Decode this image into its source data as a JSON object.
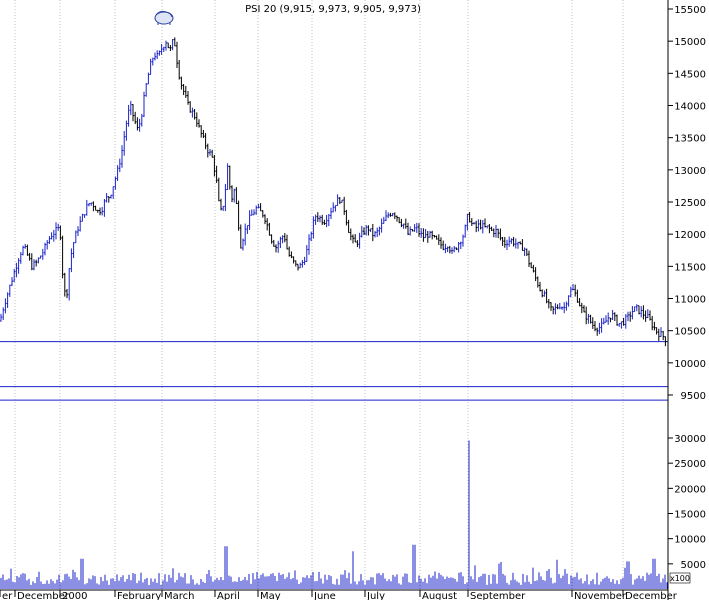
{
  "chart_data": [
    {
      "type": "candlestick",
      "title": "PSI 20 (9,915, 9,973, 9,905, 9,973)",
      "ylim": [
        9350,
        15550
      ],
      "y_ticks": [
        "15500",
        "15000",
        "14500",
        "14000",
        "13500",
        "13000",
        "12500",
        "12000",
        "11500",
        "11000",
        "10500",
        "10000",
        "9500"
      ],
      "x_month_labels": [
        "er",
        "December",
        "2000",
        "February",
        "March",
        "April",
        "May",
        "June",
        "July",
        "August",
        "September",
        "November",
        "December"
      ],
      "horizontal_levels": [
        10330,
        9630,
        9420
      ],
      "trend_points": [
        [
          0,
          10650
        ],
        [
          4,
          10900
        ],
        [
          8,
          11100
        ],
        [
          12,
          11300
        ],
        [
          16,
          11500
        ],
        [
          20,
          11700
        ],
        [
          24,
          11800
        ],
        [
          28,
          11650
        ],
        [
          32,
          11500
        ],
        [
          36,
          11550
        ],
        [
          40,
          11650
        ],
        [
          44,
          11750
        ],
        [
          48,
          11900
        ],
        [
          52,
          12000
        ],
        [
          56,
          12050
        ],
        [
          60,
          12100
        ],
        [
          63,
          11300
        ],
        [
          66,
          10950
        ],
        [
          70,
          11600
        ],
        [
          74,
          11900
        ],
        [
          78,
          12100
        ],
        [
          82,
          12250
        ],
        [
          86,
          12400
        ],
        [
          90,
          12500
        ],
        [
          94,
          12450
        ],
        [
          98,
          12350
        ],
        [
          102,
          12400
        ],
        [
          106,
          12550
        ],
        [
          110,
          12600
        ],
        [
          114,
          12800
        ],
        [
          118,
          13000
        ],
        [
          122,
          13300
        ],
        [
          126,
          13700
        ],
        [
          130,
          14000
        ],
        [
          134,
          13800
        ],
        [
          138,
          13600
        ],
        [
          142,
          13900
        ],
        [
          146,
          14300
        ],
        [
          150,
          14600
        ],
        [
          154,
          14800
        ],
        [
          158,
          14750
        ],
        [
          162,
          14900
        ],
        [
          166,
          15000
        ],
        [
          170,
          14850
        ],
        [
          174,
          15050
        ],
        [
          177,
          14700
        ],
        [
          180,
          14400
        ],
        [
          184,
          14200
        ],
        [
          188,
          14000
        ],
        [
          192,
          13900
        ],
        [
          196,
          13800
        ],
        [
          200,
          13600
        ],
        [
          204,
          13450
        ],
        [
          208,
          13300
        ],
        [
          212,
          13200
        ],
        [
          216,
          12900
        ],
        [
          220,
          12300
        ],
        [
          224,
          12500
        ],
        [
          228,
          13100
        ],
        [
          231,
          12500
        ],
        [
          234,
          12700
        ],
        [
          238,
          12300
        ],
        [
          240,
          11800
        ],
        [
          244,
          12000
        ],
        [
          248,
          12200
        ],
        [
          252,
          12300
        ],
        [
          256,
          12400
        ],
        [
          260,
          12350
        ],
        [
          264,
          12300
        ],
        [
          268,
          12100
        ],
        [
          272,
          11900
        ],
        [
          276,
          11800
        ],
        [
          280,
          11900
        ],
        [
          284,
          12000
        ],
        [
          288,
          11700
        ],
        [
          292,
          11600
        ],
        [
          296,
          11500
        ],
        [
          300,
          11500
        ],
        [
          304,
          11600
        ],
        [
          308,
          11800
        ],
        [
          312,
          12100
        ],
        [
          316,
          12300
        ],
        [
          320,
          12250
        ],
        [
          324,
          12200
        ],
        [
          328,
          12300
        ],
        [
          332,
          12400
        ],
        [
          336,
          12500
        ],
        [
          340,
          12550
        ],
        [
          344,
          12400
        ],
        [
          348,
          12100
        ],
        [
          352,
          11900
        ],
        [
          356,
          11850
        ],
        [
          360,
          11950
        ],
        [
          364,
          12050
        ],
        [
          368,
          12100
        ],
        [
          372,
          12000
        ],
        [
          376,
          12000
        ],
        [
          380,
          12100
        ],
        [
          384,
          12200
        ],
        [
          388,
          12300
        ],
        [
          392,
          12350
        ],
        [
          396,
          12300
        ],
        [
          400,
          12200
        ],
        [
          404,
          12150
        ],
        [
          408,
          12000
        ],
        [
          412,
          12050
        ],
        [
          416,
          12100
        ],
        [
          420,
          12000
        ],
        [
          424,
          11950
        ],
        [
          428,
          12000
        ],
        [
          432,
          11950
        ],
        [
          436,
          11900
        ],
        [
          440,
          11850
        ],
        [
          444,
          11800
        ],
        [
          448,
          11850
        ],
        [
          452,
          11700
        ],
        [
          456,
          11800
        ],
        [
          460,
          11900
        ],
        [
          464,
          12000
        ],
        [
          468,
          12300
        ],
        [
          472,
          12150
        ],
        [
          476,
          12100
        ],
        [
          480,
          12150
        ],
        [
          484,
          12100
        ],
        [
          488,
          12100
        ],
        [
          492,
          12050
        ],
        [
          496,
          12050
        ],
        [
          500,
          11950
        ],
        [
          504,
          11850
        ],
        [
          508,
          11900
        ],
        [
          512,
          11900
        ],
        [
          516,
          11850
        ],
        [
          520,
          11800
        ],
        [
          524,
          11800
        ],
        [
          528,
          11600
        ],
        [
          532,
          11450
        ],
        [
          536,
          11300
        ],
        [
          540,
          11150
        ],
        [
          544,
          11050
        ],
        [
          548,
          10900
        ],
        [
          552,
          10800
        ],
        [
          556,
          10850
        ],
        [
          560,
          10900
        ],
        [
          564,
          10850
        ],
        [
          568,
          11050
        ],
        [
          572,
          11150
        ],
        [
          576,
          11050
        ],
        [
          580,
          10900
        ],
        [
          584,
          10750
        ],
        [
          588,
          10700
        ],
        [
          592,
          10600
        ],
        [
          596,
          10550
        ],
        [
          600,
          10550
        ],
        [
          604,
          10600
        ],
        [
          608,
          10700
        ],
        [
          612,
          10750
        ],
        [
          616,
          10650
        ],
        [
          620,
          10600
        ],
        [
          624,
          10650
        ],
        [
          628,
          10700
        ],
        [
          632,
          10800
        ],
        [
          636,
          10850
        ],
        [
          640,
          10800
        ],
        [
          644,
          10750
        ],
        [
          648,
          10700
        ],
        [
          652,
          10600
        ],
        [
          656,
          10500
        ],
        [
          660,
          10450
        ],
        [
          664,
          10400
        ],
        [
          668,
          10330
        ]
      ]
    },
    {
      "type": "bar",
      "title": "",
      "ylim": [
        0,
        30000
      ],
      "y_ticks": [
        "30000",
        "25000",
        "20000",
        "15000",
        "10000",
        "5000"
      ],
      "unit_label": "x100",
      "spike_bars": [
        [
          82,
          6000
        ],
        [
          226,
          8500
        ],
        [
          353,
          7500
        ],
        [
          414,
          8800
        ],
        [
          469,
          29500
        ],
        [
          628,
          5500
        ],
        [
          654,
          6000
        ]
      ]
    }
  ]
}
